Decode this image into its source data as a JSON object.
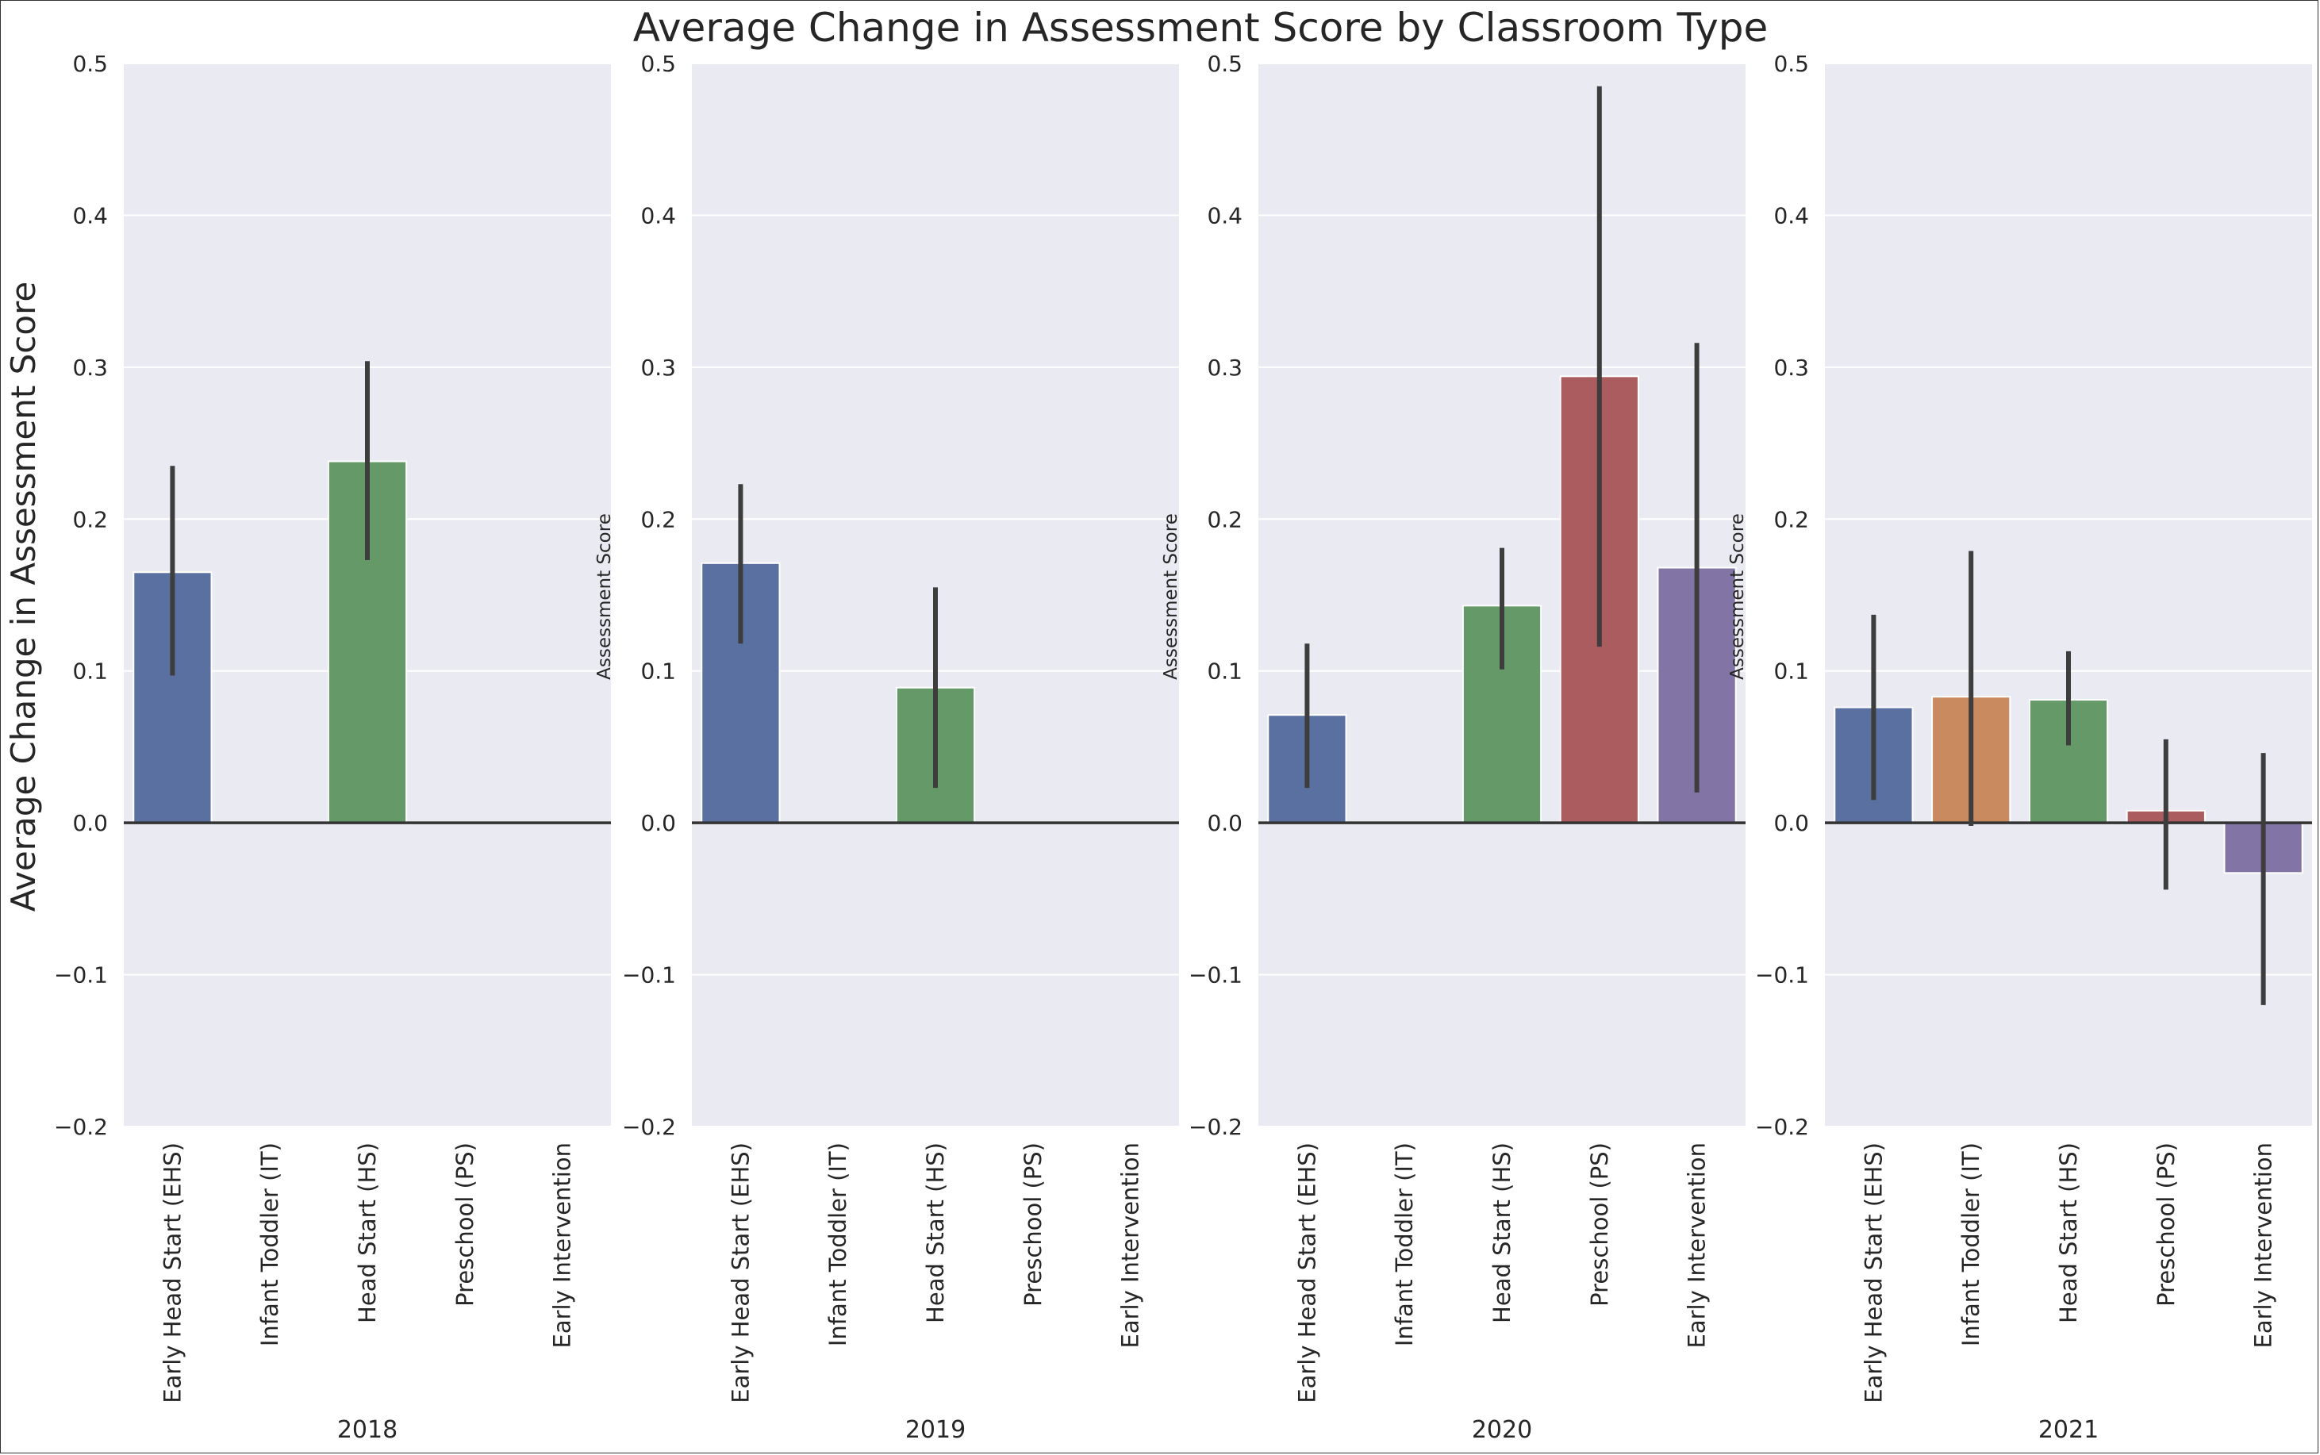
{
  "chart_data": {
    "type": "bar",
    "title": "Average Change in Assessment Score by Classroom Type",
    "ylabel": "Average Change in Assessment Score",
    "secondary_ylabel": "Assessment Score",
    "ylim": [
      -0.2,
      0.5
    ],
    "yticks": [
      -0.2,
      -0.1,
      0.0,
      0.1,
      0.2,
      0.3,
      0.4,
      0.5
    ],
    "ytick_labels": [
      "−0.2",
      "−0.1",
      "0.0",
      "0.1",
      "0.2",
      "0.3",
      "0.4",
      "0.5"
    ],
    "categories": [
      "Early Head Start (EHS)",
      "Infant Toddler (IT)",
      "Head Start (HS)",
      "Preschool (PS)",
      "Early Intervention"
    ],
    "colors": [
      "#5a70a0",
      "#c98a60",
      "#659a68",
      "#ab5c5e",
      "#8275a6"
    ],
    "background": "#eaeaf2",
    "grid": true,
    "panels": [
      {
        "xlabel": "2018",
        "values": [
          0.165,
          null,
          0.238,
          null,
          null
        ],
        "ci": [
          [
            0.097,
            0.235
          ],
          null,
          [
            0.173,
            0.304
          ],
          null,
          null
        ]
      },
      {
        "xlabel": "2019",
        "values": [
          0.171,
          null,
          0.089,
          null,
          null
        ],
        "ci": [
          [
            0.118,
            0.223
          ],
          null,
          [
            0.023,
            0.155
          ],
          null,
          null
        ]
      },
      {
        "xlabel": "2020",
        "values": [
          0.071,
          null,
          0.143,
          0.294,
          0.168
        ],
        "ci": [
          [
            0.023,
            0.118
          ],
          null,
          [
            0.101,
            0.181
          ],
          [
            0.116,
            0.485
          ],
          [
            0.02,
            0.316
          ]
        ]
      },
      {
        "xlabel": "2021",
        "values": [
          0.076,
          0.083,
          0.081,
          0.008,
          -0.033
        ],
        "ci": [
          [
            0.015,
            0.137
          ],
          [
            -0.002,
            0.179
          ],
          [
            0.051,
            0.113
          ],
          [
            -0.044,
            0.055
          ],
          [
            -0.12,
            0.046
          ]
        ]
      }
    ]
  }
}
